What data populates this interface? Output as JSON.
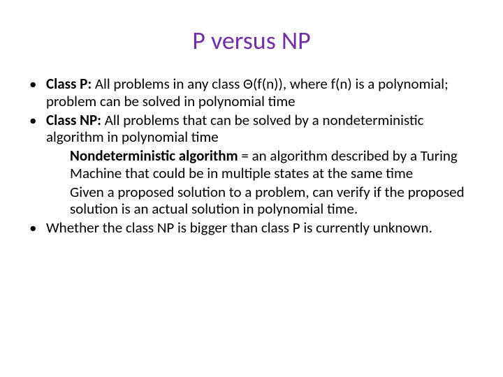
{
  "title": "P versus NP",
  "title_color": "#7030a0",
  "body_color": "#000000",
  "background_color": "#ffffff",
  "title_fontsize": 36,
  "body_fontsize": 21,
  "bullet1": {
    "label": "Class P:",
    "text_a": " All problems in any class ",
    "theta": "Θ",
    "text_b": "(f(n)), where f(n) is a polynomial; problem can be solved in polynomial time"
  },
  "bullet2": {
    "label": "Class NP:",
    "text": " All problems that can be solved by a nondeterministic algorithm in polynomial time"
  },
  "sub1": {
    "label": "Nondeterministic algorithm",
    "text": " = an algorithm described by a Turing Machine that could be in multiple states at the same time"
  },
  "sub2": {
    "text": "Given a proposed solution to a problem, can verify if the proposed solution is an actual solution in polynomial time."
  },
  "bullet3": {
    "text": "Whether the class NP is bigger than class P is currently unknown."
  },
  "bullet_char": "•"
}
